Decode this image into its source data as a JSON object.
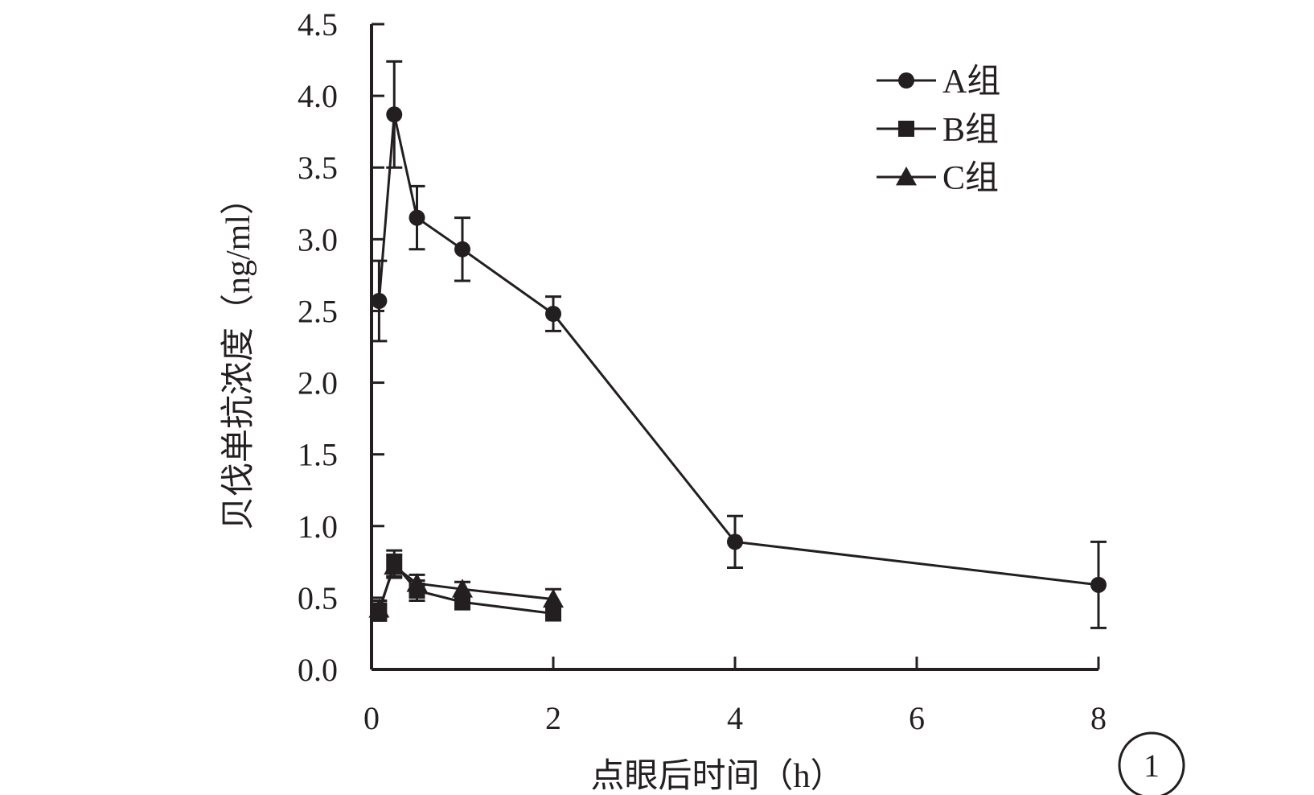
{
  "chart_data": {
    "type": "line",
    "title": "",
    "xlabel": "点眼后时间（h）",
    "ylabel": "贝伐单抗浓度（ng/ml）",
    "xlim": [
      0,
      8
    ],
    "ylim": [
      0,
      4.5
    ],
    "xticks": [
      0,
      2,
      4,
      6,
      8
    ],
    "xtick_labels": [
      "0",
      "2",
      "4",
      "6",
      "8"
    ],
    "yticks": [
      0,
      0.5,
      1,
      1.5,
      2,
      2.5,
      3,
      3.5,
      4,
      4.5
    ],
    "ytick_labels": [
      "0.0",
      "0.5",
      "1.0",
      "1.5",
      "2.0",
      "2.5",
      "3.0",
      "3.5",
      "4.0",
      "4.5"
    ],
    "grid": false,
    "legend_position": "top-right",
    "panel_label": "1",
    "series": [
      {
        "name": "A组",
        "marker": "circle",
        "x": [
          0.083,
          0.25,
          0.5,
          1,
          2,
          4,
          8
        ],
        "y": [
          2.57,
          3.87,
          3.15,
          2.93,
          2.48,
          0.89,
          0.59
        ],
        "error": [
          0.28,
          0.37,
          0.22,
          0.22,
          0.12,
          0.18,
          0.3
        ]
      },
      {
        "name": "B组",
        "marker": "square",
        "x": [
          0.083,
          0.25,
          0.5,
          1,
          2
        ],
        "y": [
          0.4,
          0.74,
          0.55,
          0.47,
          0.39
        ],
        "error": [
          0.06,
          0.09,
          0.07,
          0.05,
          0.04
        ]
      },
      {
        "name": "C组",
        "marker": "triangle",
        "x": [
          0.083,
          0.25,
          0.5,
          1,
          2
        ],
        "y": [
          0.42,
          0.72,
          0.6,
          0.56,
          0.49
        ],
        "error": [
          0.06,
          0.08,
          0.06,
          0.05,
          0.07
        ]
      }
    ]
  }
}
